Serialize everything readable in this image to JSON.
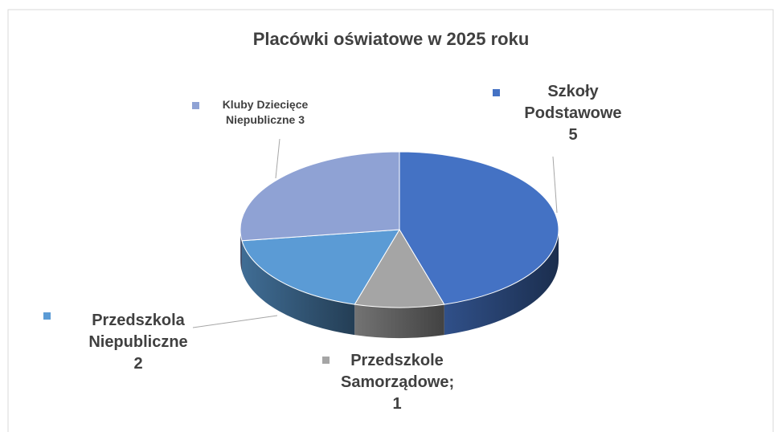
{
  "chart_data": {
    "type": "pie3d",
    "title": "Placówki oświatowe w 2025 roku",
    "labels": [
      "Szkoły Podstawowe 5",
      "Przedszkole Samorządowe; 1",
      "Przedszkola Niepubliczne 2",
      "Kluby Dziecięce Niepubliczne 3"
    ],
    "values": [
      5,
      1,
      2,
      3
    ],
    "colors": [
      "#4472c4",
      "#a5a5a5",
      "#5b9bd5",
      "#8fa2d4"
    ]
  }
}
